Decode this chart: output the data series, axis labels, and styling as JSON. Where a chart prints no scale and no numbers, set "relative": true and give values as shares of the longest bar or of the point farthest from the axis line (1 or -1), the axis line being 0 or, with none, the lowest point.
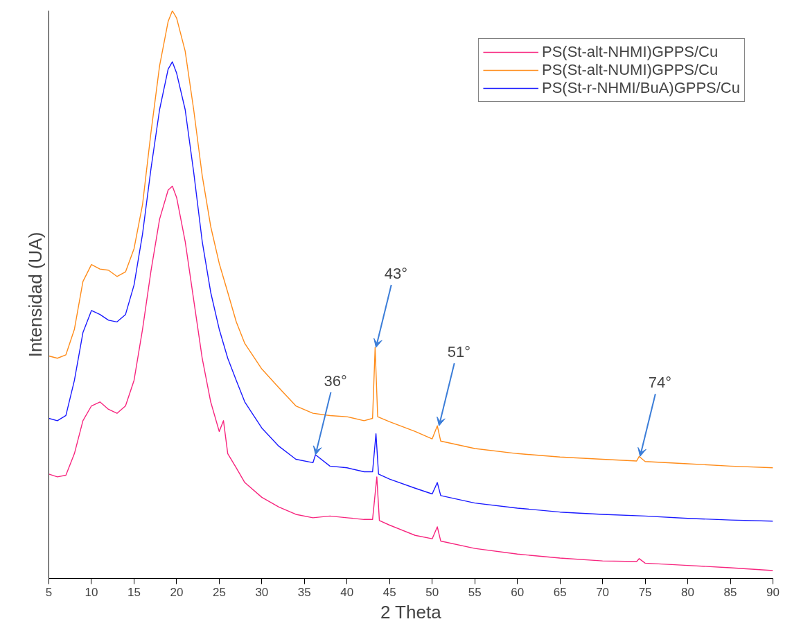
{
  "chart_data": {
    "type": "line",
    "relative": true,
    "xlabel": "2 Theta",
    "ylabel": "Intensidad (UA)",
    "xlim": [
      5,
      90
    ],
    "xticks": [
      5,
      10,
      15,
      20,
      25,
      30,
      35,
      40,
      45,
      50,
      55,
      60,
      65,
      70,
      75,
      80,
      85,
      90
    ],
    "tick_labels": "x",
    "grid": false,
    "legend": "top right",
    "marker": "none",
    "line_style": "solid",
    "series": [
      {
        "name": "PS(St-alt-NHMI)GPPS/Cu",
        "color": "#f7267f",
        "x": [
          5,
          6,
          7,
          8,
          9,
          10,
          11,
          12,
          13,
          14,
          15,
          16,
          17,
          18,
          19,
          19.5,
          20,
          21,
          22,
          23,
          24,
          25,
          25.5,
          26,
          27,
          28,
          30,
          32,
          34,
          36,
          38,
          40,
          42,
          43,
          43.5,
          43.8,
          45,
          48,
          50,
          50.6,
          51,
          55,
          60,
          65,
          70,
          74,
          74.3,
          75,
          80,
          85,
          90
        ],
        "values": [
          0.184,
          0.179,
          0.182,
          0.22,
          0.278,
          0.304,
          0.311,
          0.298,
          0.291,
          0.304,
          0.349,
          0.439,
          0.543,
          0.633,
          0.684,
          0.691,
          0.671,
          0.594,
          0.491,
          0.388,
          0.311,
          0.259,
          0.278,
          0.22,
          0.195,
          0.169,
          0.143,
          0.126,
          0.113,
          0.107,
          0.11,
          0.107,
          0.104,
          0.104,
          0.179,
          0.102,
          0.094,
          0.076,
          0.07,
          0.091,
          0.066,
          0.053,
          0.043,
          0.036,
          0.031,
          0.03,
          0.035,
          0.027,
          0.023,
          0.019,
          0.014
        ]
      },
      {
        "name": "PS(St-alt-NUMI)GPPS/Cu",
        "color": "#ff8c1a",
        "x": [
          5,
          6,
          7,
          8,
          9,
          10,
          11,
          12,
          13,
          14,
          15,
          16,
          17,
          18,
          19,
          19.5,
          20,
          21,
          22,
          23,
          24,
          25,
          26,
          27,
          28,
          30,
          32,
          34,
          36,
          38,
          40,
          42,
          43,
          43.3,
          43.6,
          45,
          48,
          50,
          50.6,
          51,
          55,
          60,
          65,
          70,
          74,
          74.3,
          75,
          80,
          85,
          90
        ],
        "values": [
          0.392,
          0.388,
          0.394,
          0.439,
          0.523,
          0.553,
          0.545,
          0.543,
          0.532,
          0.54,
          0.581,
          0.659,
          0.787,
          0.903,
          0.981,
          1.0,
          0.987,
          0.929,
          0.826,
          0.71,
          0.62,
          0.555,
          0.504,
          0.452,
          0.414,
          0.369,
          0.336,
          0.304,
          0.291,
          0.287,
          0.285,
          0.278,
          0.282,
          0.407,
          0.285,
          0.276,
          0.259,
          0.246,
          0.269,
          0.242,
          0.229,
          0.22,
          0.214,
          0.21,
          0.207,
          0.215,
          0.206,
          0.202,
          0.198,
          0.195
        ]
      },
      {
        "name": "PS(St-r-NHMI/BuA)GPPS/Cu",
        "color": "#1a1aff",
        "x": [
          5,
          6,
          7,
          8,
          9,
          10,
          11,
          12,
          13,
          14,
          15,
          16,
          17,
          18,
          19,
          19.5,
          20,
          21,
          22,
          23,
          24,
          25,
          26,
          27,
          28,
          30,
          32,
          34,
          36,
          36.3,
          38,
          40,
          42,
          43,
          43.4,
          43.7,
          45,
          48,
          50,
          50.6,
          51,
          55,
          60,
          65,
          70,
          75,
          80,
          85,
          90
        ],
        "values": [
          0.282,
          0.278,
          0.287,
          0.349,
          0.433,
          0.472,
          0.465,
          0.455,
          0.452,
          0.465,
          0.517,
          0.607,
          0.723,
          0.826,
          0.897,
          0.91,
          0.89,
          0.826,
          0.716,
          0.594,
          0.504,
          0.439,
          0.388,
          0.349,
          0.311,
          0.265,
          0.233,
          0.21,
          0.204,
          0.218,
          0.198,
          0.195,
          0.188,
          0.188,
          0.255,
          0.184,
          0.175,
          0.159,
          0.149,
          0.169,
          0.146,
          0.133,
          0.124,
          0.117,
          0.113,
          0.11,
          0.106,
          0.103,
          0.101
        ]
      }
    ],
    "annotations": [
      {
        "text": "36°",
        "x": 36.3,
        "y": 0.218
      },
      {
        "text": "43°",
        "x": 43.4,
        "y": 0.407
      },
      {
        "text": "51°",
        "x": 50.8,
        "y": 0.269
      },
      {
        "text": "74°",
        "x": 74.4,
        "y": 0.215
      }
    ]
  }
}
